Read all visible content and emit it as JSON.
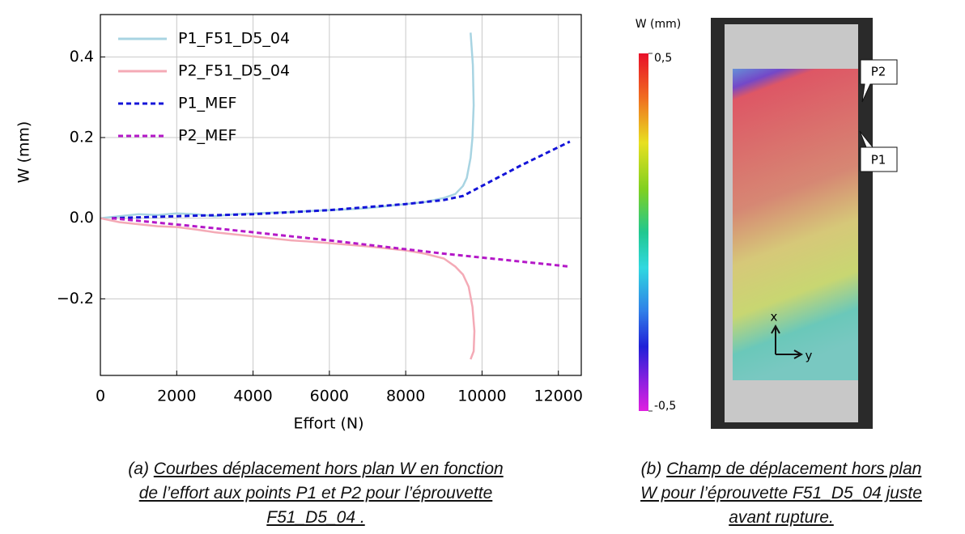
{
  "chart_data": {
    "type": "line",
    "xlabel": "Effort (N)",
    "ylabel": "W (mm)",
    "xlim": [
      0,
      12600
    ],
    "ylim": [
      -0.39,
      0.505
    ],
    "xticks": [
      0,
      2000,
      4000,
      6000,
      8000,
      10000,
      12000
    ],
    "yticks": [
      {
        "value": -0.2,
        "label": "−0.2"
      },
      {
        "value": 0,
        "label": "0.0"
      },
      0.2,
      0.4
    ],
    "grid": true,
    "legend": "upper left",
    "series": [
      {
        "name": "P1_F51_D5_04",
        "color": "#a8d4e2",
        "style": "solid",
        "x": [
          0,
          500,
          1000,
          1500,
          2000,
          2500,
          3000,
          3500,
          4000,
          4500,
          5000,
          5500,
          6000,
          6500,
          7000,
          7500,
          8000,
          8500,
          9000,
          9300,
          9500,
          9600,
          9700,
          9750,
          9780,
          9760,
          9700
        ],
        "values": [
          0,
          0.005,
          0.01,
          0.008,
          0.012,
          0.01,
          0.005,
          0.01,
          0.012,
          0.014,
          0.015,
          0.018,
          0.02,
          0.022,
          0.025,
          0.03,
          0.035,
          0.04,
          0.05,
          0.06,
          0.08,
          0.1,
          0.15,
          0.2,
          0.28,
          0.38,
          0.46
        ]
      },
      {
        "name": "P2_F51_D5_04",
        "color": "#f4aab6",
        "style": "solid",
        "x": [
          0,
          500,
          1000,
          1500,
          2000,
          2500,
          3000,
          3500,
          4000,
          4500,
          5000,
          5500,
          6000,
          6500,
          7000,
          7500,
          8000,
          8500,
          9000,
          9300,
          9500,
          9650,
          9750,
          9800,
          9780,
          9700
        ],
        "values": [
          0,
          -0.01,
          -0.015,
          -0.02,
          -0.022,
          -0.028,
          -0.035,
          -0.04,
          -0.045,
          -0.05,
          -0.055,
          -0.058,
          -0.062,
          -0.066,
          -0.07,
          -0.075,
          -0.08,
          -0.088,
          -0.1,
          -0.12,
          -0.14,
          -0.17,
          -0.22,
          -0.28,
          -0.33,
          -0.35
        ]
      },
      {
        "name": "P1_MEF",
        "color": "#1414d8",
        "style": "dashed",
        "x": [
          300,
          2000,
          4000,
          6000,
          8000,
          9000,
          9500,
          10000,
          11000,
          12300
        ],
        "values": [
          0,
          0.005,
          0.01,
          0.02,
          0.035,
          0.045,
          0.055,
          0.08,
          0.13,
          0.19
        ]
      },
      {
        "name": "P2_MEF",
        "color": "#b418c8",
        "style": "dashed",
        "x": [
          300,
          3000,
          6000,
          9000,
          12300
        ],
        "values": [
          0,
          -0.025,
          -0.055,
          -0.088,
          -0.12
        ]
      }
    ]
  },
  "figure_b": {
    "colorbar_title": "W (mm)",
    "colorbar_ticks": [
      {
        "value": 0.5,
        "label": "0,5"
      },
      {
        "value": -0.5,
        "label": "-0,5"
      }
    ],
    "colorbar_lim": [
      -0.5,
      0.5
    ],
    "points": [
      "P2",
      "P1"
    ],
    "axes": [
      "x",
      "y"
    ]
  },
  "captions": {
    "a": {
      "prefix": "(a) ",
      "lines": [
        "Courbes déplacement hors plan W en fonction",
        "de l’effort aux points P1 et P2 pour l’éprouvette",
        "F51_D5_04 ."
      ]
    },
    "b": {
      "prefix": "(b) ",
      "lines": [
        "Champ de déplacement hors plan",
        "W pour l’éprouvette F51_D5_04 juste",
        "avant rupture."
      ]
    }
  }
}
